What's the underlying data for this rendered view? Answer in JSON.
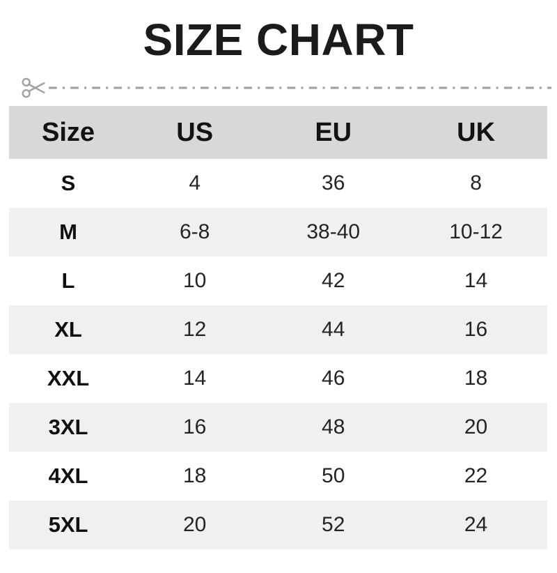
{
  "chart_data": {
    "type": "table",
    "title": "SIZE CHART",
    "columns": [
      "Size",
      "US",
      "EU",
      "UK"
    ],
    "rows": [
      [
        "S",
        "4",
        "36",
        "8"
      ],
      [
        "M",
        "6-8",
        "38-40",
        "10-12"
      ],
      [
        "L",
        "10",
        "42",
        "14"
      ],
      [
        "XL",
        "12",
        "44",
        "16"
      ],
      [
        "XXL",
        "14",
        "46",
        "18"
      ],
      [
        "3XL",
        "16",
        "48",
        "20"
      ],
      [
        "4XL",
        "18",
        "50",
        "22"
      ],
      [
        "5XL",
        "20",
        "52",
        "24"
      ]
    ],
    "layout_hints": {
      "header_row_shaded": true,
      "zebra_striping": "even body rows shaded",
      "cut_line_above_table": true
    }
  },
  "colors": {
    "header_bg": "#d8d8d8",
    "alt_row_bg": "#f0f0f0",
    "title_text": "#1b1b1b",
    "cut_line": "#a3a3a3"
  }
}
